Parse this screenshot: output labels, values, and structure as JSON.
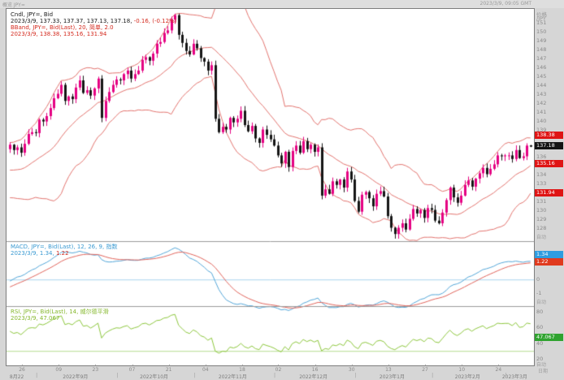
{
  "topbar": {
    "left_label": "概览 JPY=",
    "right_label": "2023/3/9, 09:05 GMT"
  },
  "legend_main": {
    "line1": "Cndl, JPY=, Bid",
    "line2_black": "2023/3/9, 137.33, 137.37, 137.13, 137.18, ",
    "line2_red": "-0.16, (-0.12%)",
    "line3": "BBand, JPY=, Bid(Last), 20, 简单, 2.0",
    "line4": "2023/3/9, 138.38, 135.16, 131.94"
  },
  "legend_macd": {
    "line1": "MACD, JPY=, Bid(Last), 12, 26, 9, 指数",
    "line2_date": "2023/3/9, ",
    "line2_macd": "1.34, ",
    "line2_signal": "1.22"
  },
  "legend_rsi": {
    "line1": "RSI, JPY=, Bid(Last), 14, 威尔德平滑",
    "line2": "2023/3/9, 47.067"
  },
  "axis": {
    "price_title": "价格",
    "price_unit": "/JPY",
    "auto_label": "自动",
    "date_title": "日期",
    "price_tick_range": [
      128,
      151
    ],
    "price_chips": [
      {
        "label": "138.38",
        "value": 138.38,
        "bg": "#df1414"
      },
      {
        "label": "137.18",
        "value": 137.18,
        "bg": "#141414"
      },
      {
        "label": "135.16",
        "value": 135.16,
        "bg": "#df1414"
      },
      {
        "label": "131.94",
        "value": 131.94,
        "bg": "#df1414"
      }
    ],
    "macd_ticks": [
      2,
      1,
      0,
      -1
    ],
    "macd_chips": [
      {
        "label": "1.34",
        "value": 1.34,
        "bg": "#2e9ce0"
      },
      {
        "label": "1.22",
        "value": 1.22,
        "bg": "#e03a1e"
      }
    ],
    "rsi_ticks": [
      80,
      60,
      40,
      20
    ],
    "rsi_chip": {
      "label": "47.067",
      "value": 47.067,
      "bg": "#2fa32f"
    },
    "date_ticks": [
      {
        "label": "26",
        "f": 0.028
      },
      {
        "label": "09",
        "f": 0.098
      },
      {
        "label": "23",
        "f": 0.168
      },
      {
        "label": "07",
        "f": 0.238
      },
      {
        "label": "21",
        "f": 0.308
      },
      {
        "label": "04",
        "f": 0.378
      },
      {
        "label": "18",
        "f": 0.448
      },
      {
        "label": "02",
        "f": 0.517
      },
      {
        "label": "16",
        "f": 0.587
      },
      {
        "label": "30",
        "f": 0.657
      },
      {
        "label": "13",
        "f": 0.727
      },
      {
        "label": "27",
        "f": 0.797
      },
      {
        "label": "10",
        "f": 0.867
      },
      {
        "label": "24",
        "f": 0.937
      }
    ],
    "months": [
      {
        "label": "8月22",
        "f": 0.018
      },
      {
        "label": "2022年9月",
        "f": 0.13
      },
      {
        "label": "2022年10月",
        "f": 0.28
      },
      {
        "label": "2022年11月",
        "f": 0.43
      },
      {
        "label": "2022年12月",
        "f": 0.584
      },
      {
        "label": "2023年1月",
        "f": 0.734
      },
      {
        "label": "2023年2月",
        "f": 0.878
      },
      {
        "label": "2023年3月",
        "f": 0.968
      }
    ],
    "month_separators": [
      0.056,
      0.21,
      0.357,
      0.51,
      0.664,
      0.811,
      0.951
    ]
  },
  "chart_data": {
    "type": "candlestick",
    "instrument": "JPY=",
    "field": "Bid",
    "date_range": "2022-08-22 to 2023-03-09, daily",
    "panes": [
      "price+bollinger(20,2.0)",
      "macd(12,26,9)",
      "rsi(14,wilder)"
    ],
    "last_candle": {
      "open": 137.33,
      "high": 137.37,
      "low": 137.13,
      "close": 137.18,
      "change": -0.16,
      "change_pct": "-0.12%"
    },
    "indicators": {
      "bollinger": {
        "period": 20,
        "stdev": 2.0,
        "upper": 138.38,
        "middle": 135.16,
        "lower": 131.94
      },
      "macd": {
        "fast": 12,
        "slow": 26,
        "signal_period": 9,
        "macd": 1.34,
        "signal": 1.22
      },
      "rsi": {
        "period": 14,
        "value": 47.067,
        "oversold_line": 30
      }
    },
    "scales": {
      "price": [
        126.6,
        152.6
      ],
      "macd": [
        -1.9,
        2.75
      ],
      "rsi": [
        13,
        87
      ]
    },
    "colors": {
      "up": "#e50082",
      "down": "#141414",
      "bband": "#e2736e",
      "macd_line": "#53a6d8",
      "signal_line": "#e0635a",
      "zero_line": "#a8d4ee",
      "rsi_line": "#8cc63c",
      "rsi_level_line": "#b4dc8e",
      "divider": "#9a9a9a"
    },
    "closes_preroll": [
      136.6,
      136.2,
      135.5,
      134.3,
      133.3,
      132.9,
      133.3,
      134.2,
      135.0,
      134.7,
      135.9,
      134.9,
      133.0,
      132.2,
      131.8,
      133.1,
      134.6,
      135.2,
      136.9
    ],
    "closes": [
      137.4,
      136.8,
      137.1,
      136.5,
      137.5,
      138.6,
      138.8,
      138.7,
      140.2,
      140.0,
      140.6,
      141.5,
      142.6,
      143.1,
      144.1,
      142.3,
      142.8,
      142.5,
      143.8,
      144.6,
      143.2,
      143.5,
      142.9,
      143.7,
      144.8,
      140.4,
      142.3,
      143.3,
      144.1,
      144.7,
      144.6,
      145.3,
      145.7,
      144.8,
      145.3,
      145.7,
      146.9,
      147.2,
      146.8,
      147.6,
      148.7,
      148.9,
      149.9,
      150.2,
      151.4,
      151.9,
      149.7,
      148.8,
      147.9,
      147.5,
      148.7,
      148.2,
      147.1,
      146.7,
      145.7,
      146.3,
      140.3,
      138.8,
      139.4,
      139.1,
      140.4,
      139.9,
      140.3,
      141.2,
      139.6,
      138.9,
      139.5,
      138.1,
      137.6,
      139.1,
      138.5,
      138.0,
      137.3,
      136.2,
      135.3,
      136.6,
      134.9,
      136.7,
      137.3,
      136.5,
      137.8,
      136.9,
      137.4,
      136.6,
      137.1,
      131.7,
      132.4,
      131.9,
      133.3,
      132.9,
      133.5,
      132.6,
      134.4,
      133.5,
      131.1,
      129.9,
      131.8,
      132.1,
      131.4,
      130.5,
      131.9,
      132.2,
      131.6,
      129.4,
      128.1,
      127.4,
      128.1,
      128.6,
      127.9,
      129.1,
      130.2,
      129.7,
      130.1,
      129.2,
      130.3,
      130.1,
      128.9,
      128.6,
      129.8,
      131.2,
      132.6,
      131.5,
      130.9,
      131.7,
      132.9,
      133.4,
      132.7,
      133.6,
      134.2,
      134.8,
      134.1,
      134.7,
      135.2,
      136.2,
      136.1,
      136.2,
      136.2,
      135.8,
      136.8,
      135.9,
      136.1,
      137.3,
      137.18
    ]
  }
}
